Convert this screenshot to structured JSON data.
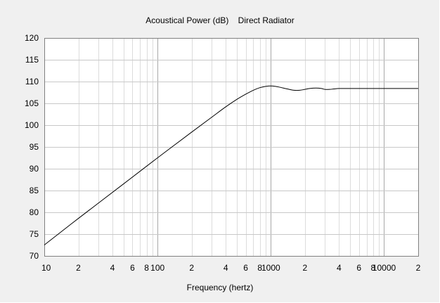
{
  "chart_data": {
    "type": "line",
    "title": "Acoustical Power (dB)    Direct Radiator",
    "xlabel": "Frequency (hertz)",
    "ylabel": "",
    "xscale": "log",
    "xlim": [
      10,
      20000
    ],
    "ylim": [
      70,
      120
    ],
    "grid": true,
    "legend": "none",
    "line_color": "#000000",
    "y_ticks": [
      70,
      75,
      80,
      85,
      90,
      95,
      100,
      105,
      110,
      115,
      120
    ],
    "x_tick_labels": [
      {
        "value": 10,
        "label": "10"
      },
      {
        "value": 20,
        "label": "2"
      },
      {
        "value": 40,
        "label": "4"
      },
      {
        "value": 60,
        "label": "6"
      },
      {
        "value": 80,
        "label": "8"
      },
      {
        "value": 100,
        "label": "100"
      },
      {
        "value": 200,
        "label": "2"
      },
      {
        "value": 400,
        "label": "4"
      },
      {
        "value": 600,
        "label": "6"
      },
      {
        "value": 800,
        "label": "8"
      },
      {
        "value": 1000,
        "label": "1000"
      },
      {
        "value": 2000,
        "label": "2"
      },
      {
        "value": 4000,
        "label": "4"
      },
      {
        "value": 6000,
        "label": "6"
      },
      {
        "value": 8000,
        "label": "8"
      },
      {
        "value": 10000,
        "label": "10000"
      },
      {
        "value": 20000,
        "label": "2"
      }
    ],
    "series": [
      {
        "x": [
          10,
          20,
          50,
          100,
          200,
          300,
          400,
          500,
          600,
          700,
          800,
          900,
          1000,
          1100,
          1200,
          1400,
          1600,
          1800,
          2000,
          2200,
          2500,
          2800,
          3000,
          3300,
          3600,
          4000,
          5000,
          7000,
          10000,
          15000,
          20000
        ],
        "y": [
          72.5,
          78.6,
          86.5,
          92.5,
          98.4,
          101.8,
          104.2,
          105.9,
          107.1,
          108.0,
          108.6,
          108.9,
          109.0,
          108.9,
          108.7,
          108.3,
          108.0,
          108.0,
          108.2,
          108.4,
          108.5,
          108.4,
          108.2,
          108.2,
          108.3,
          108.4,
          108.4,
          108.4,
          108.4,
          108.4,
          108.4
        ]
      }
    ]
  }
}
